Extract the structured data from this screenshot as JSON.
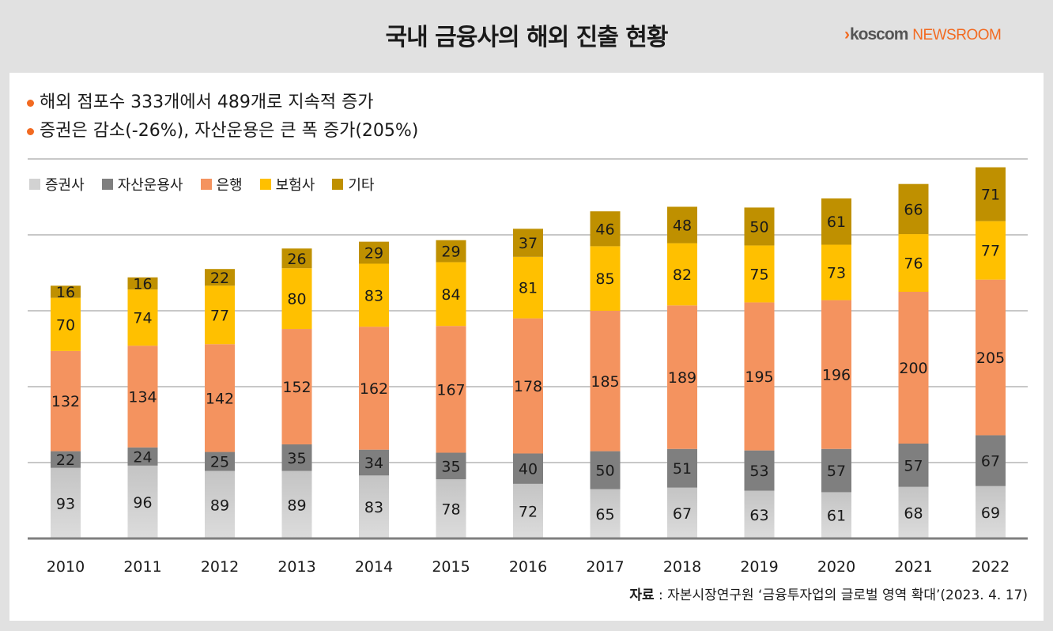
{
  "header": {
    "title": "국내 금융사의 해외 진출 현황",
    "logo": {
      "chevron": "›",
      "brand": "koscom",
      "suffix": "NEWSROOM"
    }
  },
  "bullets": [
    "해외 점포수 333개에서 489개로 지속적 증가",
    "증권은 감소(-26%), 자산운용은 큰 폭 증가(205%)"
  ],
  "source": {
    "label": "자료",
    "separator": " : ",
    "text": "자본시장연구원 ‘금융투자업의 글로벌 영역 확대’(2023. 4. 17)"
  },
  "colors": {
    "accent": "#f26a21",
    "securities": "#d2d2d2",
    "asset_mgmt": "#7f7f7f",
    "bank": "#f4935f",
    "insurance": "#ffc000",
    "other": "#bf9000"
  },
  "chart_data": {
    "type": "bar",
    "stacked": true,
    "title": "국내 금융사의 해외 진출 현황",
    "xlabel": "",
    "ylabel": "",
    "ylim": [
      0,
      500
    ],
    "grid": true,
    "gridlines": [
      100,
      200,
      300,
      400,
      500
    ],
    "legend_position": "top-left",
    "categories": [
      "2010",
      "2011",
      "2012",
      "2013",
      "2014",
      "2015",
      "2016",
      "2017",
      "2018",
      "2019",
      "2020",
      "2021",
      "2022"
    ],
    "series": [
      {
        "name": "증권사",
        "color": "#d2d2d2",
        "values": [
          93,
          96,
          89,
          89,
          83,
          78,
          72,
          65,
          67,
          63,
          61,
          68,
          69
        ]
      },
      {
        "name": "자산운용사",
        "color": "#7f7f7f",
        "values": [
          22,
          24,
          25,
          35,
          34,
          35,
          40,
          50,
          51,
          53,
          57,
          57,
          67
        ]
      },
      {
        "name": "은행",
        "color": "#f4935f",
        "values": [
          132,
          134,
          142,
          152,
          162,
          167,
          178,
          185,
          189,
          195,
          196,
          200,
          205
        ]
      },
      {
        "name": "보험사",
        "color": "#ffc000",
        "values": [
          70,
          74,
          77,
          80,
          83,
          84,
          81,
          85,
          82,
          75,
          73,
          76,
          77
        ]
      },
      {
        "name": "기타",
        "color": "#bf9000",
        "values": [
          16,
          16,
          22,
          26,
          29,
          29,
          37,
          46,
          48,
          50,
          61,
          66,
          71
        ]
      }
    ]
  }
}
